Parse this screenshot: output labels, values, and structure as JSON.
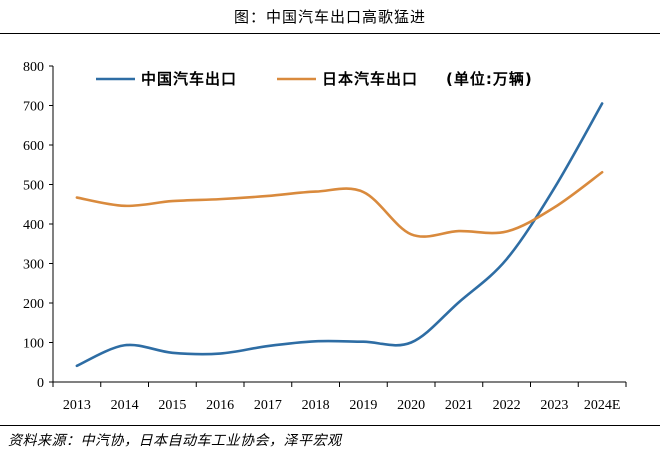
{
  "page": {
    "title": "图：中国汽车出口高歌猛进",
    "source": "资料来源：中汽协，日本自动车工业协会，泽平宏观"
  },
  "chart_data": {
    "type": "line",
    "categories": [
      "2013",
      "2014",
      "2015",
      "2016",
      "2017",
      "2018",
      "2019",
      "2020",
      "2021",
      "2022",
      "2023",
      "2024E"
    ],
    "ylim": [
      0,
      800
    ],
    "yticks": [
      0,
      100,
      200,
      300,
      400,
      500,
      600,
      700,
      800
    ],
    "grid": false,
    "legend_position": "top",
    "unit_note": "(单位:万辆)",
    "series": [
      {
        "name": "中国汽车出口",
        "color": "#2e6da4",
        "values": [
          41,
          93,
          74,
          72,
          91,
          103,
          102,
          100,
          202,
          311,
          491,
          705
        ]
      },
      {
        "name": "日本汽车出口",
        "color": "#d98a3d",
        "values": [
          467,
          446,
          458,
          463,
          471,
          482,
          481,
          374,
          382,
          381,
          442,
          531
        ]
      }
    ]
  }
}
